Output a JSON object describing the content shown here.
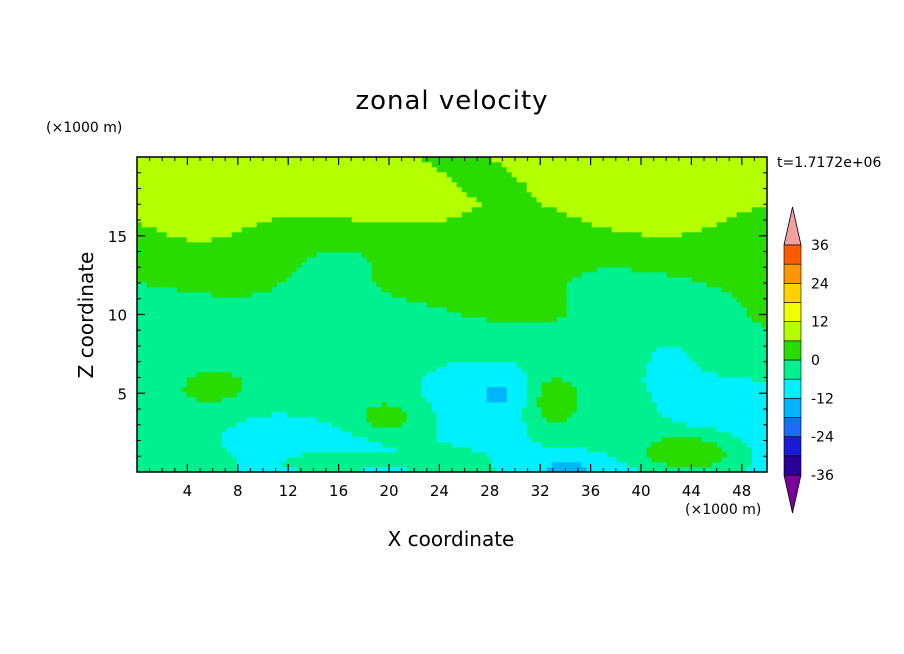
{
  "chart_data": {
    "type": "heatmap",
    "title": "zonal velocity",
    "xlabel": "X coordinate",
    "ylabel": "Z coordinate",
    "x_unit": "(×1000 m)",
    "z_unit": "(×1000 m)",
    "time_label": "t=1.7172e+06",
    "xlim": [
      0,
      50
    ],
    "ylim": [
      0,
      20
    ],
    "x_ticks": [
      4,
      8,
      12,
      16,
      20,
      24,
      28,
      32,
      36,
      40,
      44,
      48
    ],
    "y_ticks": [
      5,
      10,
      15
    ],
    "colorbar": {
      "levels": [
        -42,
        -36,
        -30,
        -24,
        -18,
        -12,
        -6,
        0,
        6,
        12,
        18,
        24,
        30,
        36,
        42
      ],
      "tick_labels": [
        "36",
        "24",
        "12",
        "0",
        "-12",
        "-24",
        "-36"
      ],
      "tick_values": [
        36,
        24,
        12,
        0,
        -12,
        -24,
        -36
      ],
      "colors": [
        "#7a009a",
        "#2b009a",
        "#1a1ad8",
        "#1e6cff",
        "#00b4ff",
        "#00f0ff",
        "#00f090",
        "#28dc00",
        "#b4ff00",
        "#f0ff00",
        "#ffd200",
        "#ff9600",
        "#ff5a00",
        "#ff1e00",
        "#f4a0a0"
      ]
    },
    "field_description_bands": [
      {
        "z_range": [
          17,
          20
        ],
        "value": 8
      },
      {
        "z_range": [
          14,
          17
        ],
        "value": 4
      },
      {
        "z_range": [
          10,
          14
        ],
        "value": 1
      },
      {
        "z_range": [
          6,
          10
        ],
        "value": -2
      },
      {
        "z_range": [
          0,
          6
        ],
        "value": -5
      }
    ]
  }
}
